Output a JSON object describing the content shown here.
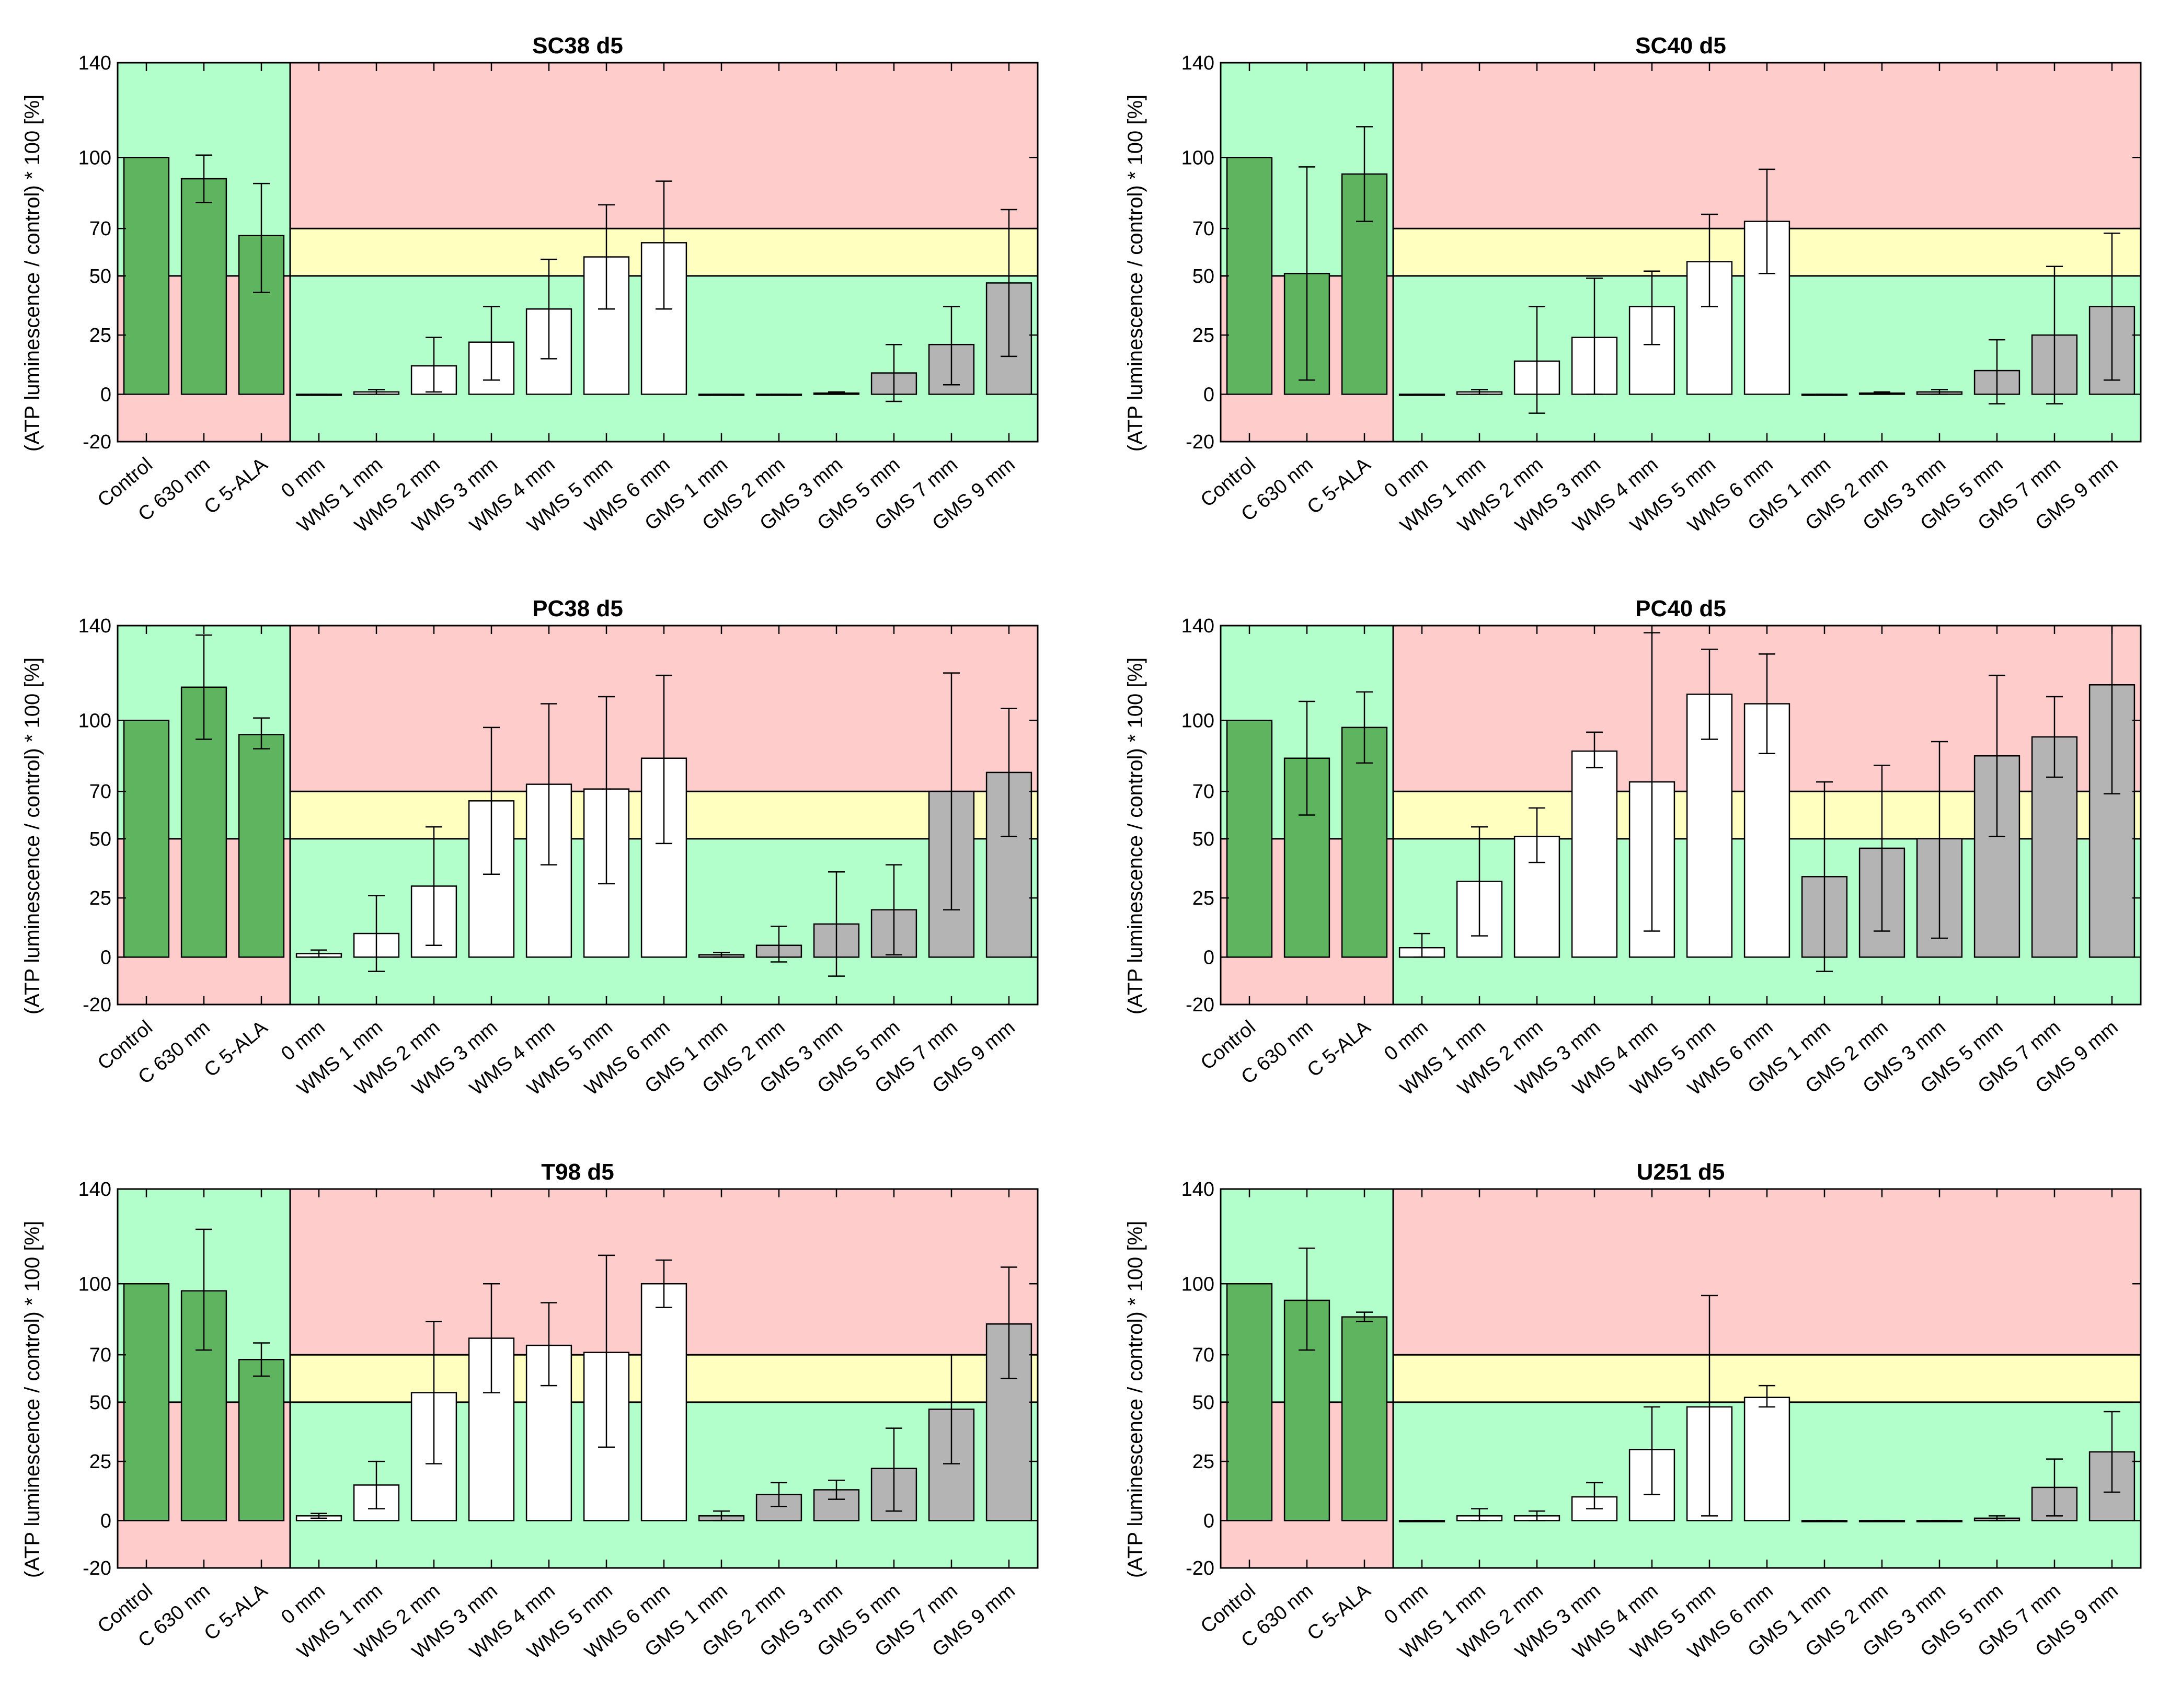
{
  "figure": {
    "ylabel": "(ATP luminescence / control) * 100 [%]",
    "ylim": [
      -20,
      140
    ],
    "yticks": [
      -20,
      0,
      25,
      50,
      70,
      100,
      140
    ],
    "categories": [
      "Control",
      "C 630 nm",
      "C 5-ALA",
      "0 mm",
      "WMS 1 mm",
      "WMS 2 mm",
      "WMS 3 mm",
      "WMS 4 mm",
      "WMS 5 mm",
      "WMS 6 mm",
      "GMS 1 mm",
      "GMS 2 mm",
      "GMS 3 mm",
      "GMS 5 mm",
      "GMS 7 mm",
      "GMS 9 mm"
    ],
    "colors": {
      "control_bar": "#5fb55f",
      "wms_bar": "#ffffff",
      "gms_bar": "#b4b4b4",
      "zone_green": "#b3ffcc",
      "zone_red": "#ffcccc",
      "zone_yellow": "#ffffc0"
    }
  },
  "chart_data": [
    {
      "type": "bar",
      "title": "SC38 d5",
      "categories": [
        "Control",
        "C 630 nm",
        "C 5-ALA",
        "0 mm",
        "WMS 1 mm",
        "WMS 2 mm",
        "WMS 3 mm",
        "WMS 4 mm",
        "WMS 5 mm",
        "WMS 6 mm",
        "GMS 1 mm",
        "GMS 2 mm",
        "GMS 3 mm",
        "GMS 5 mm",
        "GMS 7 mm",
        "GMS 9 mm"
      ],
      "values": [
        100,
        91,
        67,
        0,
        1,
        12,
        22,
        36,
        58,
        64,
        0,
        0,
        0.5,
        9,
        21,
        47
      ],
      "err_low": [
        100,
        81,
        43,
        0,
        0,
        1,
        6,
        15,
        36,
        36,
        0,
        0,
        0,
        -3,
        4,
        16
      ],
      "err_high": [
        100,
        101,
        89,
        0,
        2,
        24,
        37,
        57,
        80,
        90,
        0,
        0,
        1,
        21,
        37,
        78
      ],
      "ylim": [
        -20,
        140
      ]
    },
    {
      "type": "bar",
      "title": "SC40 d5",
      "categories": [
        "Control",
        "C 630 nm",
        "C 5-ALA",
        "0 mm",
        "WMS 1 mm",
        "WMS 2 mm",
        "WMS 3 mm",
        "WMS 4 mm",
        "WMS 5 mm",
        "WMS 6 mm",
        "GMS 1 mm",
        "GMS 2 mm",
        "GMS 3 mm",
        "GMS 5 mm",
        "GMS 7 mm",
        "GMS 9 mm"
      ],
      "values": [
        100,
        51,
        93,
        0,
        1,
        14,
        24,
        37,
        56,
        73,
        0,
        0.5,
        1,
        10,
        25,
        37
      ],
      "err_low": [
        100,
        6,
        73,
        0,
        0,
        -8,
        0,
        21,
        37,
        51,
        0,
        0,
        0,
        -4,
        -4,
        6
      ],
      "err_high": [
        100,
        96,
        113,
        0,
        2,
        37,
        49,
        52,
        76,
        95,
        0,
        1,
        2,
        23,
        54,
        68
      ],
      "ylim": [
        -20,
        140
      ]
    },
    {
      "type": "bar",
      "title": "PC38 d5",
      "categories": [
        "Control",
        "C 630 nm",
        "C 5-ALA",
        "0 mm",
        "WMS 1 mm",
        "WMS 2 mm",
        "WMS 3 mm",
        "WMS 4 mm",
        "WMS 5 mm",
        "WMS 6 mm",
        "GMS 1 mm",
        "GMS 2 mm",
        "GMS 3 mm",
        "GMS 5 mm",
        "GMS 7 mm",
        "GMS 9 mm"
      ],
      "values": [
        100,
        114,
        94,
        1.5,
        10,
        30,
        66,
        73,
        71,
        84,
        1,
        5,
        14,
        20,
        70,
        78
      ],
      "err_low": [
        100,
        92,
        88,
        0,
        -6,
        5,
        35,
        39,
        31,
        48,
        0,
        -2,
        -8,
        1,
        20,
        51
      ],
      "err_high": [
        100,
        136,
        101,
        3,
        26,
        55,
        97,
        107,
        110,
        119,
        2,
        13,
        36,
        39,
        120,
        105
      ],
      "ylim": [
        -20,
        140
      ]
    },
    {
      "type": "bar",
      "title": "PC40 d5",
      "categories": [
        "Control",
        "C 630 nm",
        "C 5-ALA",
        "0 mm",
        "WMS 1 mm",
        "WMS 2 mm",
        "WMS 3 mm",
        "WMS 4 mm",
        "WMS 5 mm",
        "WMS 6 mm",
        "GMS 1 mm",
        "GMS 2 mm",
        "GMS 3 mm",
        "GMS 5 mm",
        "GMS 7 mm",
        "GMS 9 mm"
      ],
      "values": [
        100,
        84,
        97,
        4,
        32,
        51,
        87,
        74,
        111,
        107,
        34,
        46,
        50,
        85,
        93,
        115
      ],
      "err_low": [
        100,
        60,
        82,
        0,
        9,
        40,
        80,
        11,
        92,
        86,
        -6,
        11,
        8,
        51,
        76,
        69
      ],
      "err_high": [
        100,
        108,
        112,
        10,
        55,
        63,
        95,
        137,
        130,
        128,
        74,
        81,
        91,
        119,
        110,
        140
      ],
      "ylim": [
        -20,
        140
      ]
    },
    {
      "type": "bar",
      "title": "T98 d5",
      "categories": [
        "Control",
        "C 630 nm",
        "C 5-ALA",
        "0 mm",
        "WMS 1 mm",
        "WMS 2 mm",
        "WMS 3 mm",
        "WMS 4 mm",
        "WMS 5 mm",
        "WMS 6 mm",
        "GMS 1 mm",
        "GMS 2 mm",
        "GMS 3 mm",
        "GMS 5 mm",
        "GMS 7 mm",
        "GMS 9 mm"
      ],
      "values": [
        100,
        97,
        68,
        2,
        15,
        54,
        77,
        74,
        71,
        100,
        2,
        11,
        13,
        22,
        47,
        83
      ],
      "err_low": [
        100,
        72,
        61,
        1,
        5,
        24,
        54,
        57,
        31,
        90,
        0,
        6,
        9,
        4,
        24,
        60
      ],
      "err_high": [
        100,
        123,
        75,
        3,
        25,
        84,
        100,
        92,
        112,
        110,
        4,
        16,
        17,
        39,
        70,
        107
      ],
      "ylim": [
        -20,
        140
      ]
    },
    {
      "type": "bar",
      "title": "U251 d5",
      "categories": [
        "Control",
        "C 630 nm",
        "C 5-ALA",
        "0 mm",
        "WMS 1 mm",
        "WMS 2 mm",
        "WMS 3 mm",
        "WMS 4 mm",
        "WMS 5 mm",
        "WMS 6 mm",
        "GMS 1 mm",
        "GMS 2 mm",
        "GMS 3 mm",
        "GMS 5 mm",
        "GMS 7 mm",
        "GMS 9 mm"
      ],
      "values": [
        100,
        93,
        86,
        0,
        2,
        2,
        10,
        30,
        48,
        52,
        0,
        0,
        0,
        1,
        14,
        29
      ],
      "err_low": [
        100,
        72,
        84,
        0,
        0,
        0,
        5,
        11,
        2,
        48,
        0,
        0,
        0,
        0,
        2,
        12
      ],
      "err_high": [
        100,
        115,
        88,
        0,
        5,
        4,
        16,
        48,
        95,
        57,
        0,
        0,
        0,
        2,
        26,
        46
      ],
      "ylim": [
        -20,
        140
      ]
    }
  ]
}
